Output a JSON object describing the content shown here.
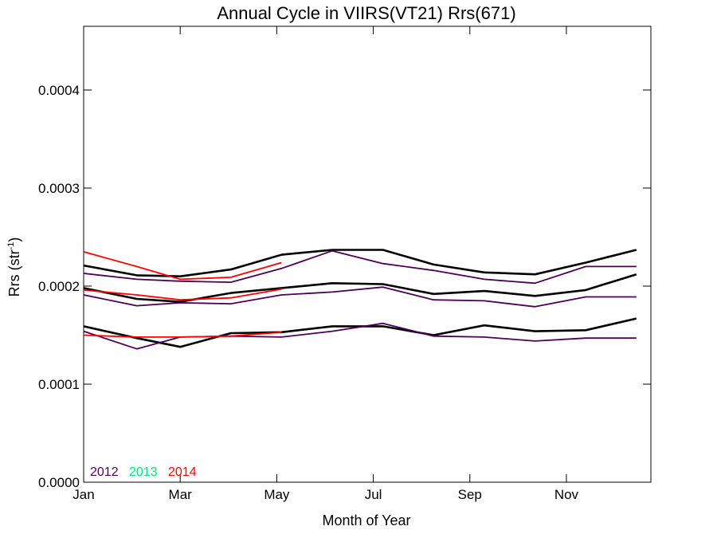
{
  "chart_data": {
    "type": "line",
    "title": "Annual Cycle in VIIRS(VT21) Rrs(671)",
    "xlabel": "Month of Year",
    "ylabel": "Rrs (str",
    "ylabel_sup": "-1",
    "ylabel_close": ")",
    "xlim": [
      1,
      12.75
    ],
    "ylim": [
      0.0,
      0.000465
    ],
    "x_ticks": [
      {
        "value": 1,
        "label": "Jan"
      },
      {
        "value": 3,
        "label": "Mar"
      },
      {
        "value": 5,
        "label": "May"
      },
      {
        "value": 7,
        "label": "Jul"
      },
      {
        "value": 9,
        "label": "Sep"
      },
      {
        "value": 11,
        "label": "Nov"
      }
    ],
    "y_ticks": [
      {
        "value": 0.0,
        "label": "0.0000"
      },
      {
        "value": 0.0001,
        "label": "0.0001"
      },
      {
        "value": 0.0002,
        "label": "0.0002"
      },
      {
        "value": 0.0003,
        "label": "0.0003"
      },
      {
        "value": 0.0004,
        "label": "0.0004"
      }
    ],
    "legend": [
      {
        "label": "2012",
        "color": "#4b0055"
      },
      {
        "label": "2013",
        "color": "#00e676"
      },
      {
        "label": "2014",
        "color": "#ff0000"
      }
    ],
    "series": [
      {
        "color": "#000000",
        "style": "climatology",
        "x": [
          1,
          2.1,
          3,
          4.05,
          5.1,
          6.15,
          7.2,
          8.25,
          9.3,
          10.35,
          11.4,
          12.45
        ],
        "y": [
          0.000221,
          0.000211,
          0.00021,
          0.000217,
          0.000232,
          0.000237,
          0.000237,
          0.000222,
          0.000214,
          0.000212,
          0.000224,
          0.000237
        ]
      },
      {
        "color": "#000000",
        "style": "climatology",
        "x": [
          1,
          2.1,
          3,
          4.05,
          5.1,
          6.15,
          7.2,
          8.25,
          9.3,
          10.35,
          11.4,
          12.45
        ],
        "y": [
          0.000198,
          0.000187,
          0.000184,
          0.000193,
          0.000198,
          0.000203,
          0.000202,
          0.000192,
          0.000195,
          0.00019,
          0.000196,
          0.000212
        ]
      },
      {
        "color": "#000000",
        "style": "climatology",
        "x": [
          1,
          2.1,
          3,
          4.05,
          5.1,
          6.15,
          7.2,
          8.25,
          9.3,
          10.35,
          11.4,
          12.45
        ],
        "y": [
          0.000159,
          0.000147,
          0.000138,
          0.000152,
          0.000153,
          0.000159,
          0.000159,
          0.00015,
          0.00016,
          0.000154,
          0.000155,
          0.000167
        ]
      },
      {
        "color": "#4b0055",
        "style": "year",
        "x": [
          1,
          2.1,
          3,
          4.05,
          5.1,
          6.15,
          7.2,
          8.25,
          9.3,
          10.35,
          11.4,
          12.45
        ],
        "y": [
          0.000213,
          0.000207,
          0.000205,
          0.000204,
          0.000218,
          0.000236,
          0.000223,
          0.000216,
          0.000207,
          0.000203,
          0.00022,
          0.00022
        ]
      },
      {
        "color": "#4b0055",
        "style": "year",
        "x": [
          1,
          2.1,
          3,
          4.05,
          5.1,
          6.15,
          7.2,
          8.25,
          9.3,
          10.35,
          11.4,
          12.45
        ],
        "y": [
          0.000191,
          0.00018,
          0.000183,
          0.000182,
          0.000191,
          0.000194,
          0.000199,
          0.000186,
          0.000185,
          0.000179,
          0.000189,
          0.000189
        ]
      },
      {
        "color": "#4b0055",
        "style": "year",
        "x": [
          1,
          2.1,
          3,
          4.05,
          5.1,
          6.15,
          7.2,
          8.25,
          9.3,
          10.35,
          11.4,
          12.45
        ],
        "y": [
          0.000154,
          0.000136,
          0.000148,
          0.000149,
          0.000148,
          0.000154,
          0.000162,
          0.000149,
          0.000148,
          0.000144,
          0.000147,
          0.000147
        ]
      },
      {
        "color": "#ff0000",
        "style": "year",
        "x": [
          1,
          2.1,
          3,
          4.05,
          5.1
        ],
        "y": [
          0.000235,
          0.00022,
          0.000207,
          0.000209,
          0.000224
        ]
      },
      {
        "color": "#ff0000",
        "style": "year",
        "x": [
          1,
          2.1,
          3,
          4.05,
          5.1
        ],
        "y": [
          0.000196,
          0.000191,
          0.000186,
          0.000188,
          0.000197
        ]
      },
      {
        "color": "#ff0000",
        "style": "year",
        "x": [
          1,
          2.1,
          3,
          4.05,
          5.1
        ],
        "y": [
          0.00015,
          0.000148,
          0.000148,
          0.000149,
          0.000153
        ]
      }
    ]
  }
}
